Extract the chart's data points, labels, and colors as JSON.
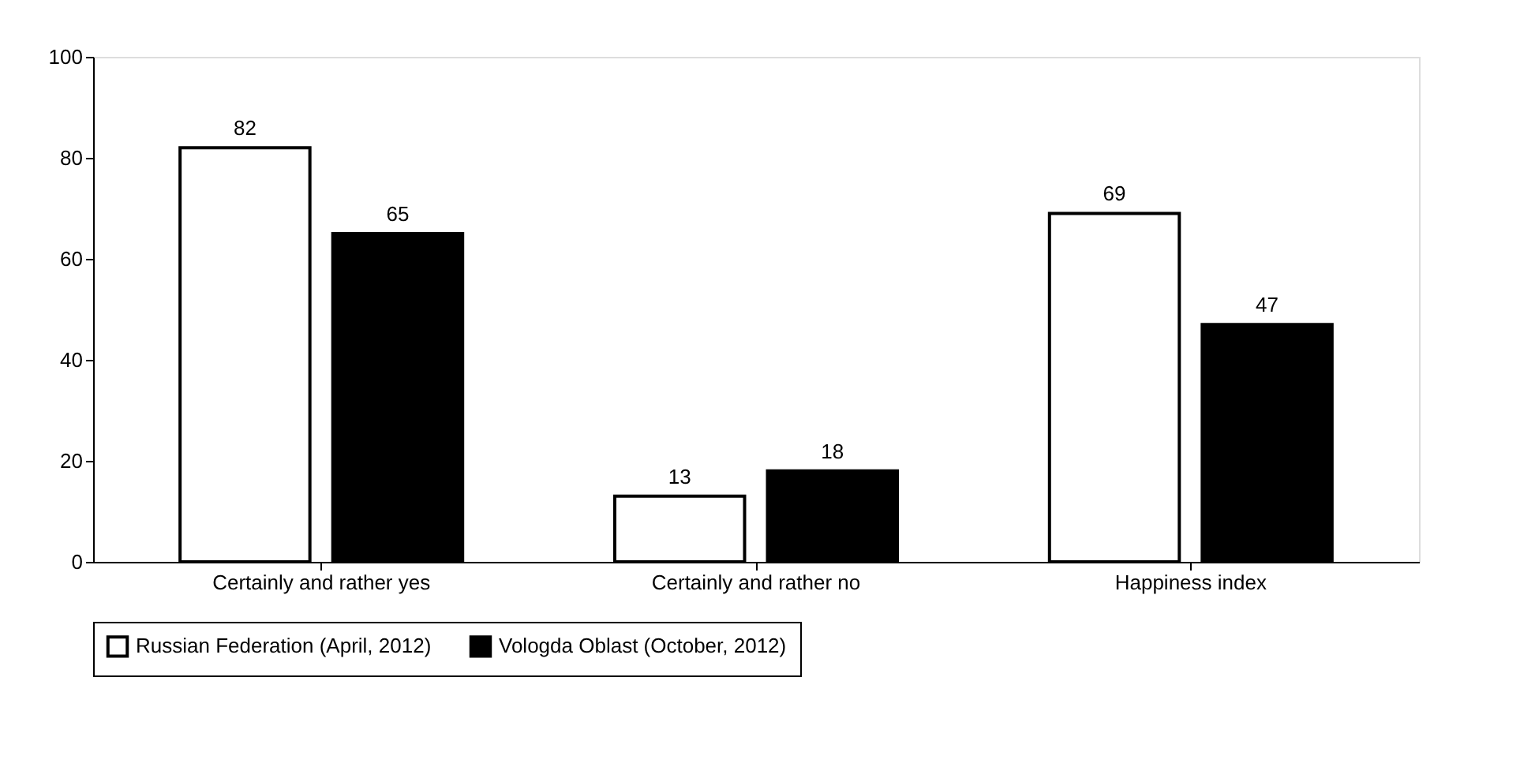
{
  "chart_data": {
    "type": "bar",
    "categories": [
      "Certainly and rather yes",
      "Certainly and rather no",
      "Happiness index"
    ],
    "series": [
      {
        "name": "Russian Federation (April, 2012)",
        "color": "#ffffff",
        "values": [
          82,
          13,
          69
        ]
      },
      {
        "name": "Vologda Oblast (October, 2012)",
        "color": "#000000",
        "values": [
          65,
          18,
          47
        ]
      }
    ],
    "ylim": [
      0,
      100
    ],
    "yticks": [
      0,
      20,
      40,
      60,
      80,
      100
    ],
    "grid": false,
    "legend": "bottom",
    "data_labels": true
  }
}
